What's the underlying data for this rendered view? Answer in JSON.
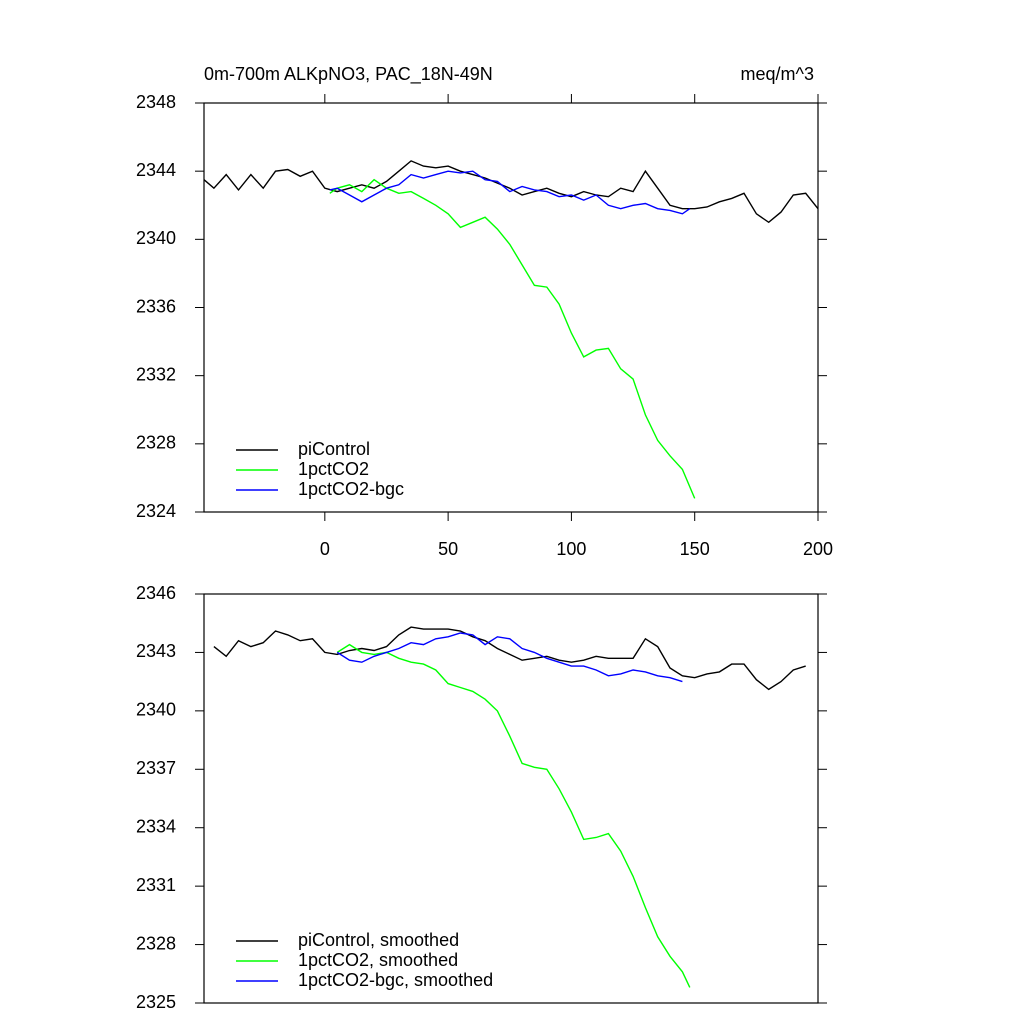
{
  "chart_data": [
    {
      "type": "line",
      "title": "0m-700m ALKpNO3, PAC_18N-49N",
      "units": "meq/m^3",
      "xlim": [
        -49,
        200
      ],
      "xticks": [
        0,
        50,
        100,
        150,
        200
      ],
      "ylim": [
        2324,
        2348
      ],
      "yticks": [
        2324,
        2328,
        2332,
        2336,
        2340,
        2344,
        2348
      ],
      "legend": "lower left",
      "series": [
        {
          "name": "piControl",
          "color": "#000000",
          "x": [
            -49,
            -45,
            -40,
            -35,
            -30,
            -25,
            -20,
            -15,
            -10,
            -5,
            0,
            5,
            10,
            15,
            20,
            25,
            30,
            35,
            40,
            45,
            50,
            55,
            60,
            65,
            70,
            75,
            80,
            85,
            90,
            95,
            100,
            105,
            110,
            115,
            120,
            125,
            130,
            135,
            140,
            145,
            150,
            155,
            160,
            165,
            170,
            175,
            180,
            185,
            190,
            195,
            200
          ],
          "values": [
            2343.5,
            2343,
            2343.8,
            2342.9,
            2343.8,
            2343,
            2344,
            2344.1,
            2343.7,
            2344,
            2343,
            2342.8,
            2343,
            2343.2,
            2343,
            2343.4,
            2344,
            2344.6,
            2344.3,
            2344.2,
            2344.3,
            2344,
            2343.8,
            2343.6,
            2343.3,
            2343,
            2342.6,
            2342.8,
            2343,
            2342.7,
            2342.5,
            2342.8,
            2342.6,
            2342.5,
            2343,
            2342.8,
            2344,
            2343,
            2342,
            2341.8,
            2341.8,
            2341.9,
            2342.2,
            2342.4,
            2342.7,
            2341.5,
            2341,
            2341.6,
            2342.6,
            2342.7,
            2341.8
          ]
        },
        {
          "name": "1pctCO2",
          "color": "#00ff00",
          "x": [
            2,
            5,
            10,
            15,
            20,
            25,
            30,
            35,
            40,
            45,
            50,
            55,
            60,
            65,
            70,
            75,
            80,
            85,
            90,
            95,
            100,
            105,
            110,
            115,
            120,
            125,
            130,
            135,
            140,
            145,
            150
          ],
          "values": [
            2342.7,
            2343,
            2343.2,
            2342.8,
            2343.5,
            2343,
            2342.7,
            2342.8,
            2342.4,
            2342,
            2341.5,
            2340.7,
            2341,
            2341.3,
            2340.6,
            2339.7,
            2338.5,
            2337.3,
            2337.2,
            2336.2,
            2334.5,
            2333.1,
            2333.5,
            2333.6,
            2332.4,
            2331.8,
            2329.7,
            2328.2,
            2327.3,
            2326.5,
            2324.8
          ]
        },
        {
          "name": "1pctCO2-bgc",
          "color": "#0000ff",
          "x": [
            2,
            5,
            10,
            15,
            20,
            25,
            30,
            35,
            40,
            45,
            50,
            55,
            60,
            65,
            70,
            75,
            80,
            85,
            90,
            95,
            100,
            105,
            110,
            115,
            120,
            125,
            130,
            135,
            140,
            145,
            148
          ],
          "values": [
            2342.9,
            2343,
            2342.6,
            2342.2,
            2342.6,
            2343,
            2343.2,
            2343.8,
            2343.6,
            2343.8,
            2344,
            2343.9,
            2344,
            2343.5,
            2343.4,
            2342.8,
            2343.1,
            2342.9,
            2342.8,
            2342.5,
            2342.6,
            2342.3,
            2342.6,
            2342,
            2341.8,
            2342,
            2342.1,
            2341.8,
            2341.7,
            2341.5,
            2341.8
          ]
        }
      ]
    },
    {
      "type": "line",
      "xlim": [
        -49,
        200
      ],
      "ylim": [
        2325,
        2346
      ],
      "yticks": [
        2325,
        2328,
        2331,
        2334,
        2337,
        2340,
        2343,
        2346
      ],
      "legend": "lower left",
      "series": [
        {
          "name": "piControl, smoothed",
          "color": "#000000",
          "x": [
            -45,
            -40,
            -35,
            -30,
            -25,
            -20,
            -15,
            -10,
            -5,
            0,
            5,
            10,
            15,
            20,
            25,
            30,
            35,
            40,
            45,
            50,
            55,
            60,
            65,
            70,
            75,
            80,
            85,
            90,
            95,
            100,
            105,
            110,
            115,
            120,
            125,
            130,
            135,
            140,
            145,
            150,
            155,
            160,
            165,
            170,
            175,
            180,
            185,
            190,
            195
          ],
          "values": [
            2343.3,
            2342.8,
            2343.6,
            2343.3,
            2343.5,
            2344.1,
            2343.9,
            2343.6,
            2343.7,
            2343,
            2342.9,
            2343.1,
            2343.2,
            2343.1,
            2343.3,
            2343.9,
            2344.3,
            2344.2,
            2344.2,
            2344.2,
            2344.1,
            2343.8,
            2343.6,
            2343.2,
            2342.9,
            2342.6,
            2342.7,
            2342.8,
            2342.6,
            2342.5,
            2342.6,
            2342.8,
            2342.7,
            2342.7,
            2342.7,
            2343.7,
            2343.3,
            2342.2,
            2341.8,
            2341.7,
            2341.9,
            2342,
            2342.4,
            2342.4,
            2341.6,
            2341.1,
            2341.5,
            2342.1,
            2342.3
          ]
        },
        {
          "name": "1pctCO2, smoothed",
          "color": "#00ff00",
          "x": [
            5,
            10,
            15,
            20,
            25,
            30,
            35,
            40,
            45,
            50,
            55,
            60,
            65,
            70,
            75,
            80,
            85,
            90,
            95,
            100,
            105,
            110,
            115,
            120,
            125,
            130,
            135,
            140,
            145,
            148
          ],
          "values": [
            2343,
            2343.4,
            2343,
            2342.9,
            2343,
            2342.7,
            2342.5,
            2342.4,
            2342.1,
            2341.4,
            2341.2,
            2341,
            2340.6,
            2340,
            2338.7,
            2337.3,
            2337.1,
            2337,
            2336,
            2334.8,
            2333.4,
            2333.5,
            2333.7,
            2332.8,
            2331.5,
            2329.9,
            2328.4,
            2327.4,
            2326.6,
            2325.8
          ]
        },
        {
          "name": "1pctCO2-bgc, smoothed",
          "color": "#0000ff",
          "x": [
            5,
            10,
            15,
            20,
            25,
            30,
            35,
            40,
            45,
            50,
            55,
            60,
            65,
            70,
            75,
            80,
            85,
            90,
            95,
            100,
            105,
            110,
            115,
            120,
            125,
            130,
            135,
            140,
            145
          ],
          "values": [
            2343,
            2342.6,
            2342.5,
            2342.8,
            2343,
            2343.2,
            2343.5,
            2343.4,
            2343.7,
            2343.8,
            2344,
            2343.9,
            2343.4,
            2343.8,
            2343.7,
            2343.2,
            2343,
            2342.7,
            2342.5,
            2342.3,
            2342.3,
            2342.1,
            2341.8,
            2341.9,
            2342.1,
            2342,
            2341.8,
            2341.7,
            2341.5
          ]
        }
      ]
    }
  ]
}
